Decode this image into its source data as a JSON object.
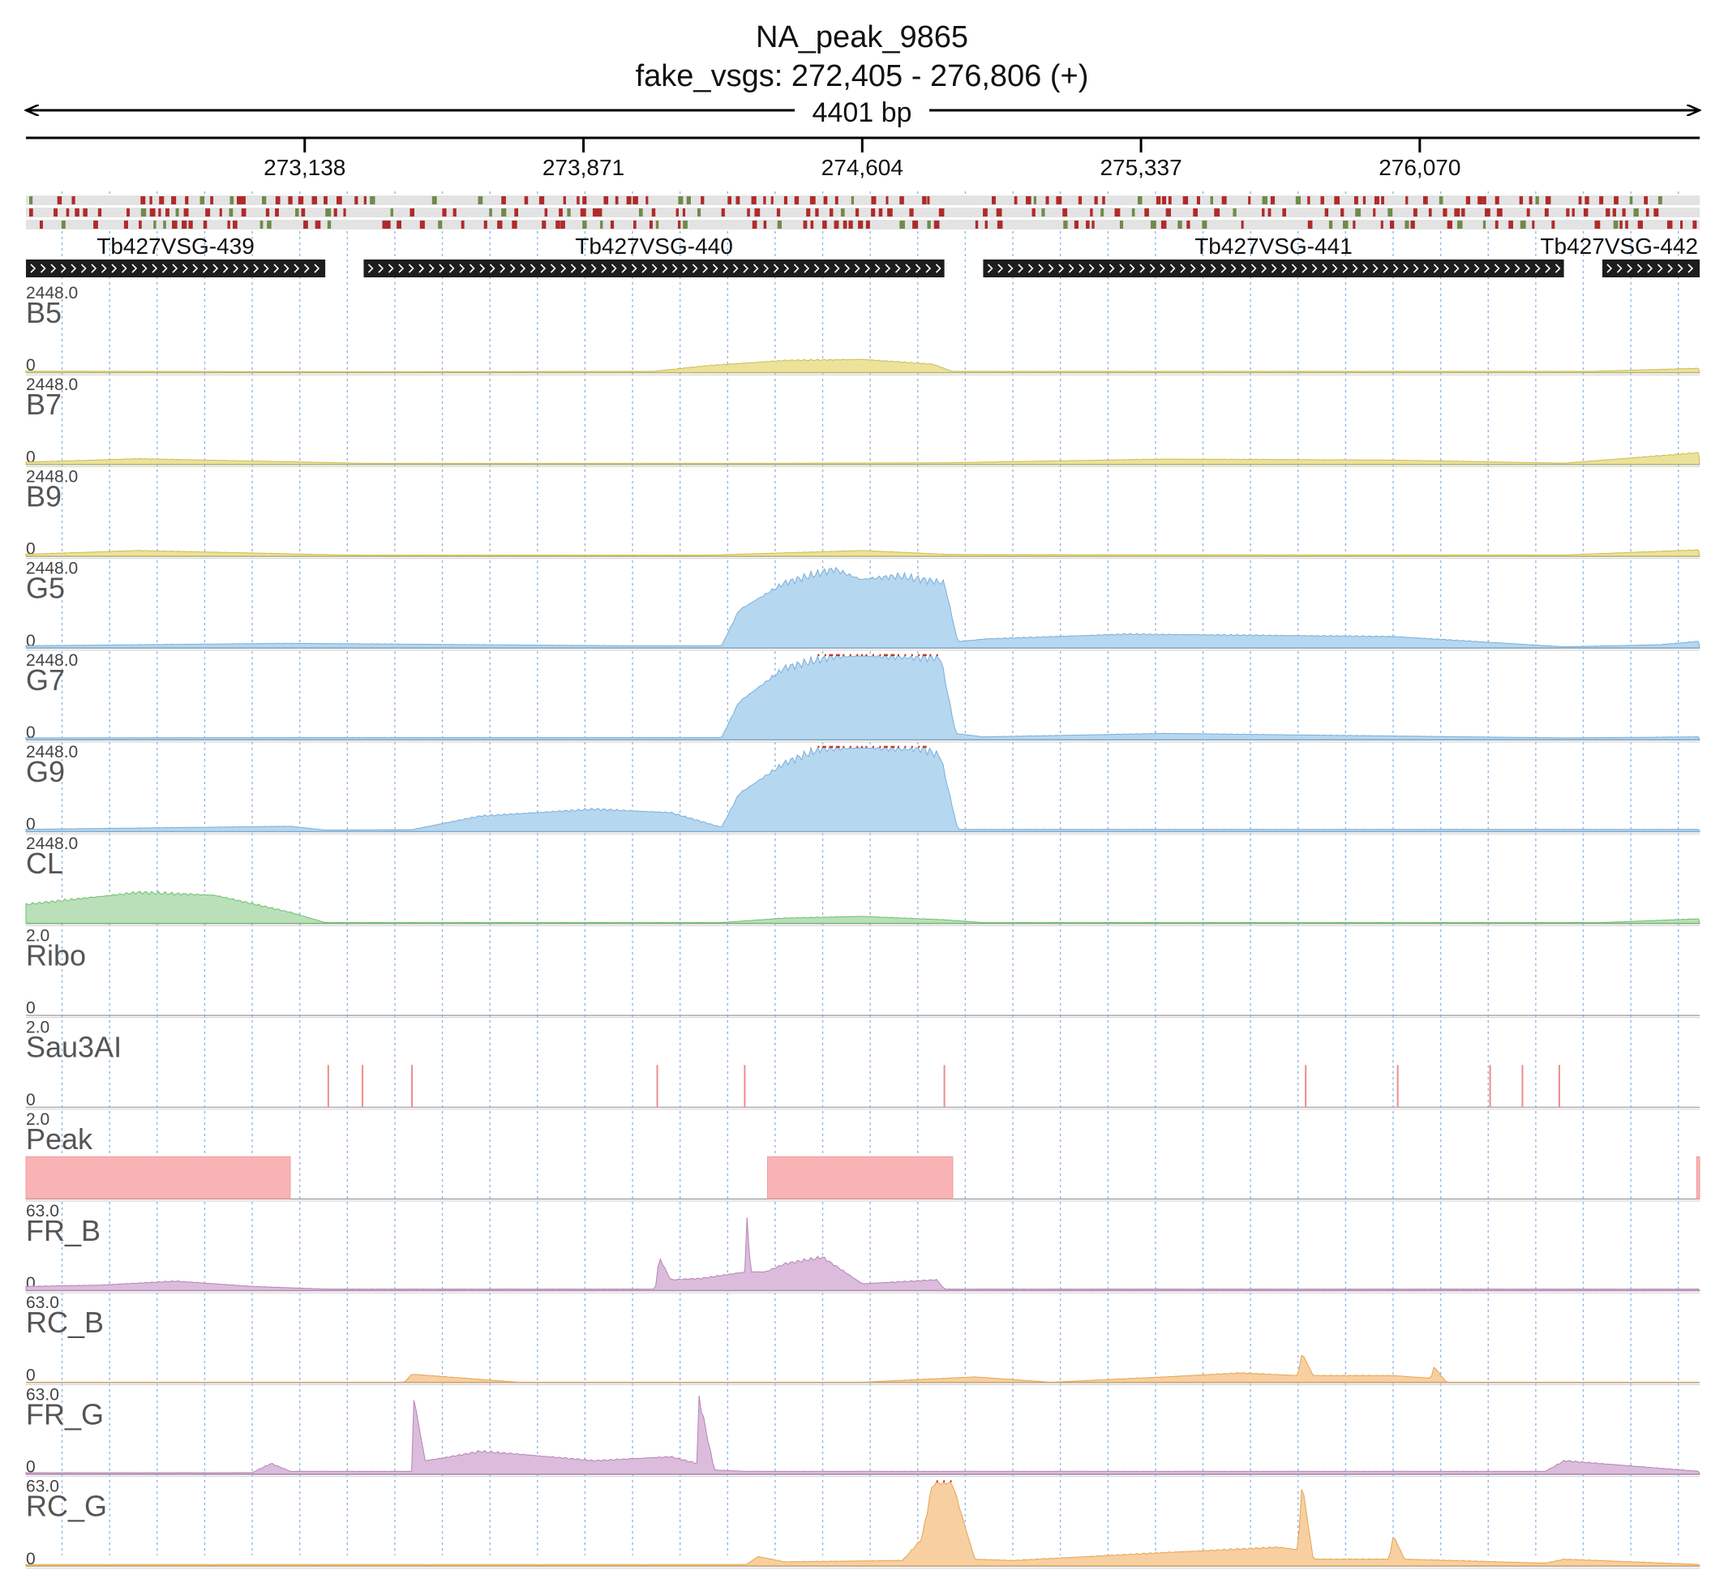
{
  "chart_data": {
    "type": "area",
    "title": "NA_peak_9865",
    "subtitle": "fake_vsgs: 272,405 - 276,806 (+)",
    "span_label": "4401 bp",
    "x_range": [
      272405,
      276806
    ],
    "x_ticks": [
      273138,
      273871,
      274604,
      275337,
      276070
    ],
    "x_tick_labels": [
      "273,138",
      "273,871",
      "274,604",
      "275,337",
      "276,070"
    ],
    "gridline_step_bp": 125,
    "genes": [
      {
        "name": "Tb427VSG-439",
        "start": 272405,
        "end": 273192,
        "strand": "+"
      },
      {
        "name": "Tb427VSG-440",
        "start": 273293,
        "end": 274820,
        "strand": "+"
      },
      {
        "name": "Tb427VSG-441",
        "start": 274922,
        "end": 276449,
        "strand": "+"
      },
      {
        "name": "Tb427VSG-442",
        "start": 276550,
        "end": 276806,
        "strand": "+"
      }
    ],
    "tracks": [
      {
        "name": "B5",
        "ymax_label": "2448.0",
        "ymin_label": "0",
        "ymax": 2448,
        "color": "#ece29a",
        "x": [
          272405,
          273192,
          273293,
          274054,
          274200,
          274400,
          274604,
          274790,
          274840,
          276520,
          276806
        ],
        "y": [
          35,
          20,
          18,
          30,
          200,
          350,
          380,
          240,
          30,
          30,
          120
        ]
      },
      {
        "name": "B7",
        "ymax_label": "2448.0",
        "ymin_label": "0",
        "ymax": 2448,
        "color": "#ece29a",
        "x": [
          272405,
          272700,
          273192,
          273293,
          274300,
          274820,
          274922,
          275400,
          276000,
          276449,
          276806
        ],
        "y": [
          60,
          160,
          50,
          25,
          25,
          40,
          60,
          150,
          120,
          30,
          340
        ]
      },
      {
        "name": "B9",
        "ymax_label": "2448.0",
        "ymin_label": "0",
        "ymax": 2448,
        "color": "#ece29a",
        "x": [
          272405,
          272700,
          273192,
          273293,
          274200,
          274604,
          274820,
          274922,
          276449,
          276806
        ],
        "y": [
          50,
          160,
          40,
          25,
          25,
          160,
          50,
          40,
          30,
          180
        ]
      },
      {
        "name": "G5",
        "ymax_label": "2448.0",
        "ymin_label": "0",
        "ymax": 2448,
        "color": "#b6d7f0",
        "x": [
          272405,
          272800,
          273100,
          274000,
          274234,
          274280,
          274400,
          274530,
          274600,
          274700,
          274820,
          274855,
          274930,
          275300,
          275700,
          276000,
          276449,
          276700,
          276806
        ],
        "y": [
          60,
          100,
          130,
          60,
          60,
          1100,
          1900,
          2300,
          2000,
          2100,
          1900,
          180,
          260,
          400,
          360,
          330,
          30,
          90,
          190
        ]
      },
      {
        "name": "G7",
        "ymax_label": "2448.0",
        "ymin_label": "0",
        "ymax": 2448,
        "color": "#b6d7f0",
        "x": [
          272405,
          273192,
          274000,
          274234,
          274280,
          274400,
          274530,
          274700,
          274810,
          274850,
          274922,
          275400,
          276449,
          276806
        ],
        "y": [
          50,
          60,
          60,
          60,
          1100,
          2100,
          2448,
          2448,
          2400,
          180,
          80,
          180,
          50,
          80
        ]
      },
      {
        "name": "G9",
        "ymax_label": "2448.0",
        "ymin_label": "0",
        "ymax": 2448,
        "color": "#b6d7f0",
        "x": [
          272405,
          273100,
          273192,
          273420,
          273600,
          273900,
          274100,
          274234,
          274280,
          274400,
          274500,
          274760,
          274810,
          274855,
          276806
        ],
        "y": [
          60,
          150,
          40,
          50,
          450,
          650,
          550,
          120,
          1100,
          2000,
          2448,
          2448,
          2200,
          60,
          60
        ]
      },
      {
        "name": "CL",
        "ymax_label": "2448.0",
        "ymin_label": "0",
        "ymax": 2448,
        "color": "#b9e0b9",
        "x": [
          272405,
          272700,
          272900,
          273100,
          273192,
          273293,
          274234,
          274400,
          274604,
          274820,
          274922,
          276550,
          276806
        ],
        "y": [
          550,
          900,
          820,
          320,
          20,
          20,
          20,
          150,
          200,
          100,
          20,
          20,
          130
        ]
      },
      {
        "name": "Ribo",
        "ymax_label": "2.0",
        "ymin_label": "0",
        "ymax": 2,
        "color": "#f3a0a0",
        "x": [],
        "y": []
      },
      {
        "name": "Sau3AI",
        "ymax_label": "2.0",
        "ymin_label": "0",
        "ymax": 2,
        "color": "#f3a0a0",
        "sites": [
          273200,
          273290,
          273420,
          274065,
          274295,
          274820,
          275770,
          276012,
          276255,
          276340,
          276437
        ],
        "site_height": 1.0
      },
      {
        "name": "Peak",
        "ymax_label": "2.0",
        "ymin_label": "0",
        "ymax": 2,
        "color": "#f8b4b4",
        "intervals": [
          [
            272405,
            273100
          ],
          [
            274355,
            274842
          ],
          [
            276798,
            276806
          ]
        ],
        "interval_height": 1.0
      },
      {
        "name": "FR_B",
        "ymax_label": "63.0",
        "ymin_label": "0",
        "ymax": 63,
        "color": "#dcbcdc",
        "x": [
          272405,
          272600,
          272800,
          273000,
          273192,
          273500,
          274060,
          274070,
          274100,
          274180,
          274300,
          274300,
          274310,
          274350,
          274400,
          274500,
          274604,
          274800,
          274820,
          276806
        ],
        "y": [
          3,
          4,
          7,
          3,
          1,
          1,
          1,
          25,
          8,
          9,
          14,
          60,
          14,
          14,
          20,
          25,
          5,
          8,
          1,
          1
        ]
      },
      {
        "name": "RC_B",
        "ymax_label": "63.0",
        "ymin_label": "0",
        "ymax": 63,
        "color": "#f8cfa0",
        "x": [
          272405,
          273400,
          273420,
          273700,
          274604,
          274900,
          275000,
          275100,
          275400,
          275600,
          275750,
          275760,
          275790,
          276000,
          276100,
          276106,
          276140,
          276806
        ],
        "y": [
          0,
          0,
          6,
          0,
          0,
          4,
          2,
          0,
          4,
          7,
          5,
          22,
          5,
          5,
          3,
          12,
          0,
          0
        ]
      },
      {
        "name": "FR_G",
        "ymax_label": "63.0",
        "ymin_label": "0",
        "ymax": 63,
        "color": "#dcbcdc",
        "x": [
          272405,
          273000,
          273050,
          273100,
          273420,
          273421,
          273455,
          273500,
          273600,
          273700,
          273900,
          274100,
          274170,
          274171,
          274215,
          274300,
          276400,
          276450,
          276806
        ],
        "y": [
          1,
          1,
          8,
          2,
          2,
          63,
          10,
          12,
          17,
          15,
          10,
          13,
          8,
          63,
          3,
          2,
          2,
          10,
          2
        ]
      },
      {
        "name": "RC_G",
        "ymax_label": "63.0",
        "ymin_label": "0",
        "ymax": 63,
        "color": "#f8cfa0",
        "x": [
          272405,
          274300,
          274330,
          274400,
          274710,
          274760,
          274790,
          274840,
          274900,
          275000,
          275400,
          275700,
          275750,
          275760,
          275790,
          275990,
          276000,
          276030,
          276400,
          276450,
          276806
        ],
        "y": [
          1,
          1,
          7,
          3,
          4,
          20,
          63,
          63,
          5,
          4,
          10,
          14,
          12,
          63,
          5,
          5,
          23,
          5,
          2,
          5,
          1
        ]
      }
    ]
  }
}
